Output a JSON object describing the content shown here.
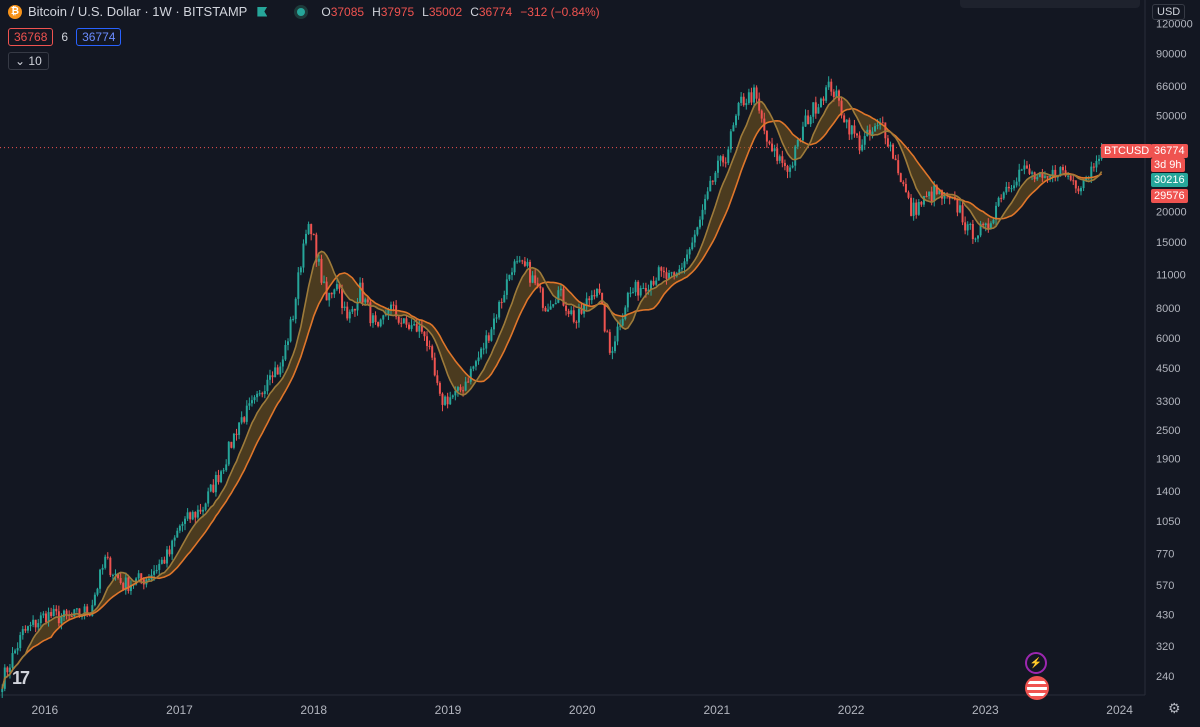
{
  "header": {
    "symbol": "Bitcoin / U.S. Dollar · 1W · BITSTAMP",
    "ohlc": [
      {
        "k": "O",
        "v": "37085"
      },
      {
        "k": "H",
        "v": "37975"
      },
      {
        "k": "L",
        "v": "35002"
      },
      {
        "k": "C",
        "v": "36774"
      }
    ],
    "change": "−312 (−0.84%)"
  },
  "order_panel": {
    "sell": "36768",
    "spread": "6",
    "buy": "36774"
  },
  "indicator": {
    "length": "10"
  },
  "currency": "USD",
  "price_tags": {
    "symbol": "BTCUSD",
    "last": "36774",
    "countdown": "3d 9h",
    "ma_fast": "30216",
    "ma_slow": "29576"
  },
  "colors": {
    "up": "#26a69a",
    "down": "#ef5350",
    "ma_fast": "#9e7b3a",
    "ma_slow": "#e0762a",
    "bg": "#131722"
  },
  "chart_data": {
    "type": "candlestick",
    "yscale": "log",
    "ylim": [
      210,
      130000
    ],
    "xlim": [
      "2015-09-01",
      "2024-03-10"
    ],
    "y_ticks": [
      120000,
      90000,
      66000,
      50000,
      36774,
      30216,
      29576,
      20000,
      15000,
      11000,
      8000,
      6000,
      4500,
      3300,
      2500,
      1900,
      1400,
      1050,
      770,
      570,
      430,
      320,
      240
    ],
    "x_ticks": [
      "2016",
      "2017",
      "2018",
      "2019",
      "2020",
      "2021",
      "2022",
      "2023",
      "2024"
    ],
    "last_price": 36774,
    "price_path": [
      [
        "2015-09-07",
        230
      ],
      [
        "2015-11-02",
        360
      ],
      [
        "2016-01-04",
        430
      ],
      [
        "2016-03-07",
        415
      ],
      [
        "2016-05-02",
        450
      ],
      [
        "2016-06-13",
        720
      ],
      [
        "2016-08-01",
        570
      ],
      [
        "2016-10-03",
        610
      ],
      [
        "2016-12-05",
        770
      ],
      [
        "2017-01-02",
        1000
      ],
      [
        "2017-03-06",
        1200
      ],
      [
        "2017-05-01",
        1800
      ],
      [
        "2017-06-12",
        2700
      ],
      [
        "2017-08-07",
        3400
      ],
      [
        "2017-09-04",
        4500
      ],
      [
        "2017-10-02",
        4400
      ],
      [
        "2017-11-06",
        7500
      ],
      [
        "2017-12-11",
        17500
      ],
      [
        "2018-01-01",
        15000
      ],
      [
        "2018-02-05",
        8500
      ],
      [
        "2018-03-05",
        10500
      ],
      [
        "2018-04-02",
        7000
      ],
      [
        "2018-05-07",
        9500
      ],
      [
        "2018-06-25",
        6200
      ],
      [
        "2018-07-23",
        8200
      ],
      [
        "2018-09-03",
        6800
      ],
      [
        "2018-10-29",
        6400
      ],
      [
        "2018-12-10",
        3300
      ],
      [
        "2019-01-28",
        3500
      ],
      [
        "2019-04-01",
        5200
      ],
      [
        "2019-05-27",
        8700
      ],
      [
        "2019-06-24",
        12000
      ],
      [
        "2019-08-05",
        11500
      ],
      [
        "2019-09-23",
        8200
      ],
      [
        "2019-10-28",
        9300
      ],
      [
        "2019-12-16",
        7000
      ],
      [
        "2020-02-10",
        10000
      ],
      [
        "2020-03-16",
        5200
      ],
      [
        "2020-05-04",
        9000
      ],
      [
        "2020-07-27",
        11000
      ],
      [
        "2020-09-07",
        10300
      ],
      [
        "2020-11-02",
        15500
      ],
      [
        "2020-12-28",
        29000
      ],
      [
        "2021-01-25",
        34000
      ],
      [
        "2021-03-08",
        57000
      ],
      [
        "2021-04-12",
        61000
      ],
      [
        "2021-05-24",
        36000
      ],
      [
        "2021-07-19",
        30000
      ],
      [
        "2021-08-30",
        47000
      ],
      [
        "2021-10-18",
        62000
      ],
      [
        "2021-11-08",
        66000
      ],
      [
        "2021-12-20",
        47000
      ],
      [
        "2022-01-24",
        38000
      ],
      [
        "2022-03-28",
        46000
      ],
      [
        "2022-05-09",
        30000
      ],
      [
        "2022-06-13",
        20000
      ],
      [
        "2022-08-15",
        24000
      ],
      [
        "2022-10-24",
        20500
      ],
      [
        "2022-11-14",
        16500
      ],
      [
        "2023-01-02",
        16600
      ],
      [
        "2023-02-13",
        24000
      ],
      [
        "2023-04-10",
        30000
      ],
      [
        "2023-06-12",
        26000
      ],
      [
        "2023-07-17",
        30000
      ],
      [
        "2023-09-11",
        26000
      ],
      [
        "2023-10-16",
        30000
      ],
      [
        "2023-10-30",
        34800
      ],
      [
        "2023-11-13",
        36774
      ]
    ],
    "series": [
      {
        "name": "",
        "type": "ma_fast"
      },
      {
        "name": "",
        "type": "ma_slow"
      }
    ]
  }
}
